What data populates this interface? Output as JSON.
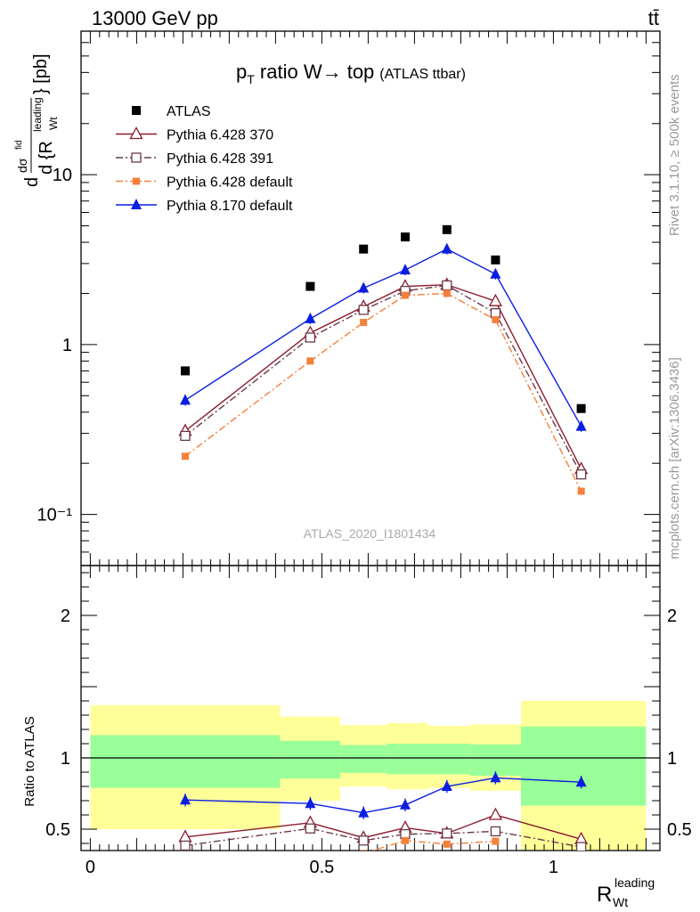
{
  "header": {
    "left": "13000 GeV pp",
    "right": "tt̄"
  },
  "side_labels": {
    "rivet": "Rivet 3.1.10, ≥ 500k events",
    "mcplots": "mcplots.cern.ch [arXiv:1306.3436]"
  },
  "colors": {
    "atlas": "#000000",
    "p370": "#8b1a2b",
    "p391": "#6b3a4a",
    "p6def": "#f4803a",
    "p8def": "#0a1fe0",
    "band_inner": "#99ff99",
    "band_outer": "#ffff99"
  },
  "chart_data": [
    {
      "type": "scatter",
      "title_main": "p",
      "title_sub": "T",
      "title_rest": " ratio W→ top",
      "title_small": "(ATLAS ttbar)",
      "ylabel": "dσ^fid / d{R_Wt^leading} [pb]",
      "yscale": "log",
      "ylim": [
        0.05,
        70
      ],
      "xlim": [
        -0.02,
        1.23
      ],
      "y_tick_labels": [
        "10⁻¹",
        "1",
        "10"
      ],
      "watermark": "ATLAS_2020_I1801434",
      "legend_position": "top-left",
      "series": [
        {
          "name": "ATLAS",
          "marker": "filled-square",
          "x": [
            0.205,
            0.475,
            0.59,
            0.68,
            0.77,
            0.875,
            1.06
          ],
          "y": [
            0.7,
            2.2,
            3.65,
            4.3,
            4.75,
            3.15,
            0.42
          ]
        },
        {
          "name": "Pythia 6.428 370",
          "marker": "open-triangle",
          "line": "solid",
          "x": [
            0.205,
            0.475,
            0.59,
            0.68,
            0.77,
            0.875,
            1.06
          ],
          "y": [
            0.31,
            1.17,
            1.67,
            2.2,
            2.25,
            1.8,
            0.185
          ]
        },
        {
          "name": "Pythia 6.428 391",
          "marker": "open-square",
          "line": "dash-dot",
          "x": [
            0.205,
            0.475,
            0.59,
            0.68,
            0.77,
            0.875,
            1.06
          ],
          "y": [
            0.29,
            1.1,
            1.6,
            2.07,
            2.23,
            1.53,
            0.172
          ]
        },
        {
          "name": "Pythia 6.428 default",
          "marker": "small-filled-square",
          "line": "dash-dot",
          "x": [
            0.205,
            0.475,
            0.59,
            0.68,
            0.77,
            0.875,
            1.06
          ],
          "y": [
            0.22,
            0.8,
            1.35,
            1.95,
            2.0,
            1.4,
            0.137
          ]
        },
        {
          "name": "Pythia 8.170 default",
          "marker": "filled-triangle",
          "line": "solid",
          "x": [
            0.205,
            0.475,
            0.59,
            0.68,
            0.77,
            0.875,
            1.06
          ],
          "y": [
            0.47,
            1.42,
            2.15,
            2.75,
            3.65,
            2.6,
            0.33
          ]
        }
      ]
    },
    {
      "type": "scatter",
      "ylabel": "Ratio to ATLAS",
      "xlabel": "R_Wt^leading",
      "xlim": [
        -0.02,
        1.23
      ],
      "ylim": [
        0.35,
        2.35
      ],
      "x_tick_labels": [
        "0",
        "0.5",
        "1"
      ],
      "y_tick_labels": [
        "0.5",
        "1",
        "2"
      ],
      "bands": {
        "edges": [
          0.0,
          0.41,
          0.54,
          0.64,
          0.73,
          0.82,
          0.93,
          1.2
        ],
        "inner_lo": [
          0.79,
          0.855,
          0.895,
          0.885,
          0.885,
          0.875,
          0.665
        ],
        "inner_hi": [
          1.16,
          1.12,
          1.09,
          1.1,
          1.1,
          1.095,
          1.22
        ],
        "outer_lo": [
          0.5,
          0.7,
          0.8,
          0.78,
          0.79,
          0.77,
          0.3
        ],
        "outer_hi": [
          1.37,
          1.29,
          1.23,
          1.245,
          1.225,
          1.235,
          1.4
        ]
      },
      "series": [
        {
          "name": "Pythia 6.428 370",
          "x": [
            0.205,
            0.475,
            0.59,
            0.68,
            0.77,
            0.875,
            1.06
          ],
          "y": [
            0.445,
            0.545,
            0.44,
            0.51,
            0.47,
            0.6,
            0.43
          ]
        },
        {
          "name": "Pythia 6.428 391",
          "x": [
            0.205,
            0.475,
            0.59,
            0.68,
            0.77,
            0.875,
            1.06
          ],
          "y": [
            0.385,
            0.505,
            0.42,
            0.465,
            0.47,
            0.485,
            0.375
          ]
        },
        {
          "name": "Pythia 6.428 default",
          "x": [
            0.59,
            0.68,
            0.77,
            0.875
          ],
          "y": [
            0.33,
            0.42,
            0.395,
            0.415
          ]
        },
        {
          "name": "Pythia 8.170 default",
          "x": [
            0.205,
            0.475,
            0.59,
            0.68,
            0.77,
            0.875,
            1.06
          ],
          "y": [
            0.705,
            0.68,
            0.615,
            0.67,
            0.8,
            0.86,
            0.83
          ]
        }
      ]
    }
  ]
}
